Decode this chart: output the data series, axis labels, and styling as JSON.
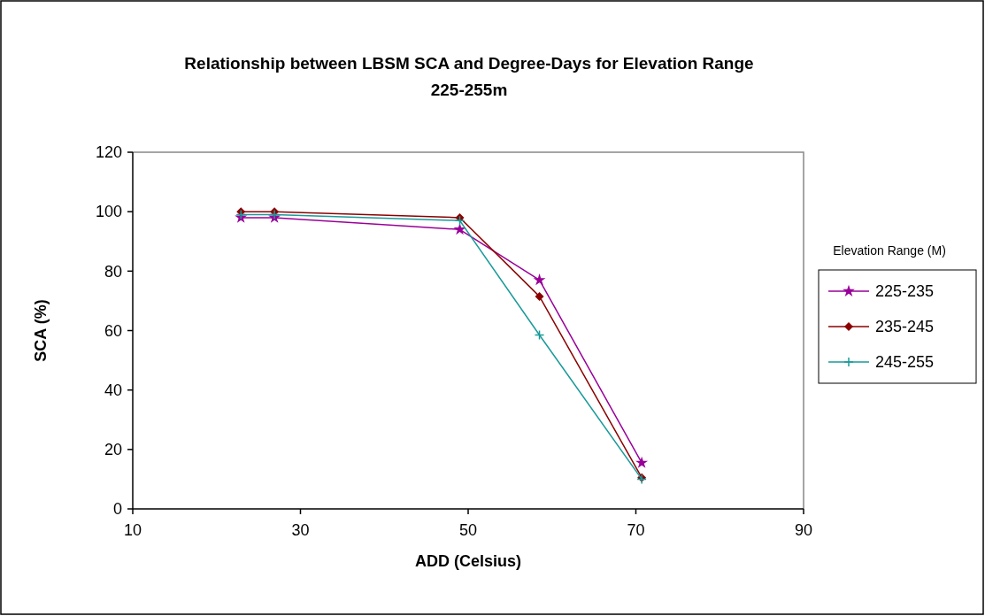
{
  "chart_data": {
    "type": "line",
    "title": "Relationship between LBSM SCA and Degree-Days for Elevation Range 225-255m",
    "xlabel": "ADD (Celsius)",
    "ylabel": "SCA (%)",
    "legend_title": "Elevation Range (M)",
    "x": [
      22.9,
      26.9,
      49.0,
      58.5,
      70.7
    ],
    "series": [
      {
        "name": "225-235",
        "color": "#990099",
        "marker": "star",
        "values": [
          98,
          98,
          94,
          77,
          15.5
        ]
      },
      {
        "name": "235-245",
        "color": "#8b0000",
        "marker": "diamond",
        "values": [
          100,
          100,
          98,
          71.5,
          10.5
        ]
      },
      {
        "name": "245-255",
        "color": "#1a9a9a",
        "marker": "cross",
        "values": [
          99,
          99,
          97,
          58.5,
          10
        ]
      }
    ],
    "xlim": [
      10,
      90
    ],
    "xticks": [
      10,
      30,
      50,
      70,
      90
    ],
    "ylim": [
      0,
      120
    ],
    "yticks": [
      0,
      20,
      40,
      60,
      80,
      100,
      120
    ],
    "grid": false,
    "legend": "right",
    "line_style": "solid"
  }
}
